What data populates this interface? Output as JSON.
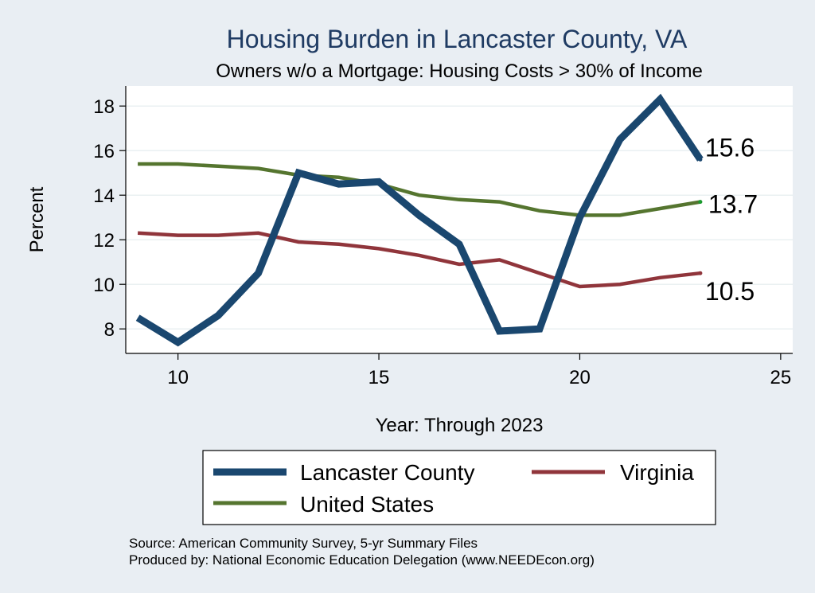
{
  "chart_data": {
    "type": "line",
    "title": "Housing Burden in Lancaster County, VA",
    "subtitle": "Owners w/o a Mortgage: Housing Costs > 30% of Income",
    "xlabel": "Year: Through 2023",
    "ylabel": "Percent",
    "xlim": [
      8.7,
      25.3
    ],
    "ylim": [
      6.9,
      18.9
    ],
    "xticks": [
      10,
      15,
      20,
      25
    ],
    "yticks": [
      8,
      10,
      12,
      14,
      16,
      18
    ],
    "grid": true,
    "legend_position": "bottom",
    "x": [
      9,
      10,
      11,
      12,
      13,
      14,
      15,
      16,
      17,
      18,
      19,
      20,
      21,
      22,
      23
    ],
    "series": [
      {
        "name": "Lancaster County",
        "color": "#1a476f",
        "end_label": "15.6",
        "values": [
          8.5,
          7.4,
          8.6,
          10.5,
          15.0,
          14.5,
          14.6,
          13.1,
          11.8,
          7.9,
          8.0,
          13.0,
          16.5,
          18.3,
          15.6
        ]
      },
      {
        "name": "Virginia",
        "color": "#90353b",
        "end_label": "10.5",
        "values": [
          12.3,
          12.2,
          12.2,
          12.3,
          11.9,
          11.8,
          11.6,
          11.3,
          10.9,
          11.1,
          10.5,
          9.9,
          10.0,
          10.3,
          10.5
        ]
      },
      {
        "name": "United States",
        "color": "#55752f",
        "end_label": "13.7",
        "values": [
          15.4,
          15.4,
          15.3,
          15.2,
          14.9,
          14.8,
          14.5,
          14.0,
          13.8,
          13.7,
          13.3,
          13.1,
          13.1,
          13.4,
          13.7
        ]
      }
    ]
  },
  "footer": {
    "source": "Source: American Community Survey, 5-yr Summary Files",
    "produced": "Produced by: National Economic Education Delegation (www.NEEDEcon.org)"
  }
}
